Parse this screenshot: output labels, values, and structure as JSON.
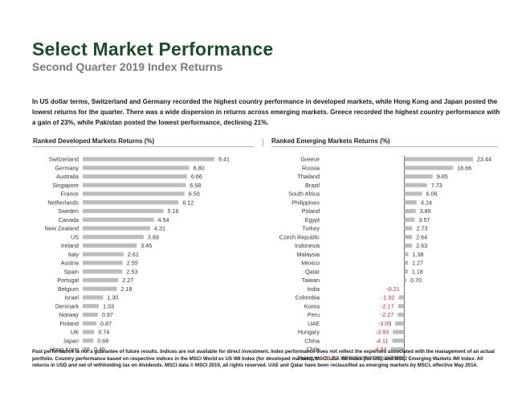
{
  "header": {
    "title": "Select Market Performance",
    "subtitle": "Second Quarter 2019 Index Returns"
  },
  "intro": "In US dollar terms, Switzerland and Germany recorded the highest country performance in developed markets, while Hong Kong and Japan posted the lowest returns for the quarter. There was a wide dispersion in returns across emerging markets. Greece recorded the highest country performance with a gain of 23%, while Pakistan posted the lowest performance, declining 21%.",
  "footnote": "Past performance is not a guarantee of future results. Indices are not available for direct investment. Index performance does not reflect the expenses associated with the management of an actual portfolio. Country performance based on respective indices in the MSCI World ex US IMI Index (for developed markets), MSCI USA IMI Index (for US), and MSCI Emerging Markets IMI Index. All returns in USD and net of withholding tax on dividends. MSCI data © MSCI 2019, all rights reserved. UAE and Qatar have been reclassified as emerging markets by MSCI, effective May 2014.",
  "colors": {
    "title": "#1f4a2c",
    "bar": "#bdbdbd",
    "negative_value": "#b0302a"
  },
  "chart_data": [
    {
      "type": "bar",
      "orientation": "horizontal",
      "title": "Ranked Developed Markets Returns (%)",
      "categories": [
        "Switzerland",
        "Germany",
        "Australia",
        "Singapore",
        "France",
        "Netherlands",
        "Sweden",
        "Canada",
        "New Zealand",
        "US",
        "Ireland",
        "Italy",
        "Austria",
        "Spain",
        "Portugal",
        "Belgium",
        "Israel",
        "Denmark",
        "Norway",
        "Finland",
        "UK",
        "Japan",
        "Hong Kong"
      ],
      "values": [
        8.41,
        6.8,
        6.66,
        6.58,
        6.5,
        6.12,
        5.16,
        4.54,
        4.31,
        3.89,
        3.45,
        2.61,
        2.55,
        2.53,
        2.27,
        2.18,
        1.3,
        1.03,
        0.97,
        0.87,
        0.74,
        0.68,
        0.46
      ],
      "labels": [
        "8.41",
        "6.80",
        "6.66",
        "6.58",
        "6.50",
        "6.12",
        "5.16",
        "4.54",
        "4.31",
        "3.89",
        "3.45",
        "2.61",
        "2.55",
        "2.53",
        "2.27",
        "2.18",
        "1.30",
        "1.03",
        "0.97",
        "0.87",
        "0.74",
        "0.68",
        "0.46"
      ],
      "xlim": [
        0,
        9
      ]
    },
    {
      "type": "bar",
      "orientation": "horizontal",
      "title": "Ranked Emerging Markets Returns (%)",
      "categories": [
        "Greece",
        "Russia",
        "Thailand",
        "Brazil",
        "South Africa",
        "Philippines",
        "Poland",
        "Egypt",
        "Turkey",
        "Czech Republic",
        "Indonesia",
        "Malaysia",
        "Mexico",
        "Qatar",
        "Taiwan",
        "India",
        "Colombia",
        "Korea",
        "Peru",
        "UAE",
        "Hungary",
        "China",
        "Chile",
        "Pakistan"
      ],
      "values": [
        23.44,
        16.66,
        9.65,
        7.73,
        6.06,
        4.24,
        3.89,
        3.57,
        2.73,
        2.64,
        2.63,
        1.38,
        1.27,
        1.18,
        0.7,
        -0.21,
        -1.92,
        -2.17,
        -2.27,
        -3.09,
        -3.93,
        -4.11,
        -4.64,
        -21.22
      ],
      "labels": [
        "23.44",
        "16.66",
        "9.65",
        "7.73",
        "6.06",
        "4.24",
        "3.89",
        "3.57",
        "2.73",
        "2.64",
        "2.63",
        "1.38",
        "1.27",
        "1.18",
        "0.70",
        "-0.21",
        "-1.92",
        "-2.17",
        "-2.27",
        "-3.09",
        "-3.93",
        "-4.11",
        "-4.64",
        "-21.22"
      ],
      "xlim": [
        -22,
        24
      ]
    }
  ]
}
